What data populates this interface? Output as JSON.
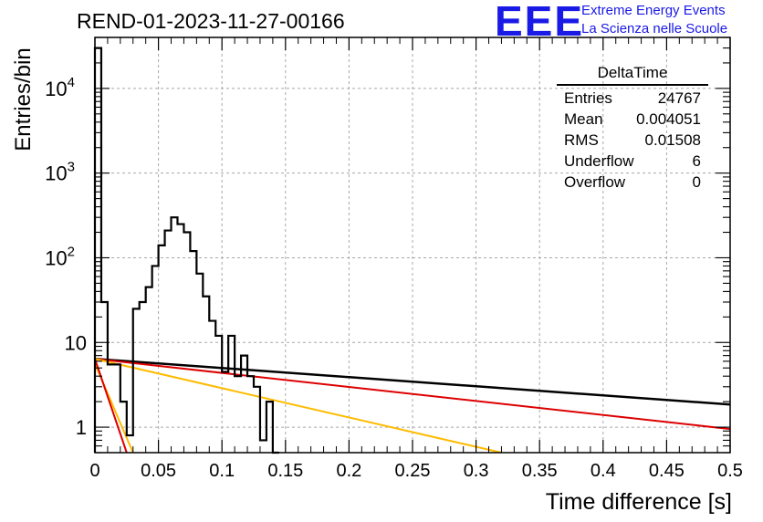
{
  "header": {
    "title": "REND-01-2023-11-27-00166",
    "logo": "EEE",
    "logo_line1": "Extreme Energy Events",
    "logo_line2": "La Scienza nelle Scuole"
  },
  "stats": {
    "name": "DeltaTime",
    "rows": [
      {
        "label": "Entries",
        "value": "24767"
      },
      {
        "label": "Mean",
        "value": "0.004051"
      },
      {
        "label": "RMS",
        "value": "0.01508"
      },
      {
        "label": "Underflow",
        "value": "6"
      },
      {
        "label": "Overflow",
        "value": "0"
      }
    ]
  },
  "chart_data": {
    "type": "line",
    "xlabel": "Time difference [s]",
    "ylabel": "Entries/bin",
    "xlim": [
      0,
      0.5
    ],
    "ylim": [
      0.5,
      40000
    ],
    "yscale": "log",
    "grid": true,
    "x_ticks": [
      {
        "value": 0,
        "label": "0"
      },
      {
        "value": 0.05,
        "label": "0.05"
      },
      {
        "value": 0.1,
        "label": "0.1"
      },
      {
        "value": 0.15,
        "label": "0.15"
      },
      {
        "value": 0.2,
        "label": "0.2"
      },
      {
        "value": 0.25,
        "label": "0.25"
      },
      {
        "value": 0.3,
        "label": "0.3"
      },
      {
        "value": 0.35,
        "label": "0.35"
      },
      {
        "value": 0.4,
        "label": "0.4"
      },
      {
        "value": 0.45,
        "label": "0.45"
      },
      {
        "value": 0.5,
        "label": "0.5"
      }
    ],
    "y_ticks": [
      {
        "value": 1,
        "label": "1",
        "sup": ""
      },
      {
        "value": 10,
        "label": "10",
        "sup": ""
      },
      {
        "value": 100,
        "label": "10",
        "sup": "2"
      },
      {
        "value": 1000,
        "label": "10",
        "sup": "3"
      },
      {
        "value": 10000,
        "label": "10",
        "sup": "4"
      }
    ],
    "histogram": {
      "color": "#000000",
      "bin_width": 0.005,
      "bins": [
        {
          "x": 0.0,
          "y": 30000
        },
        {
          "x": 0.005,
          "y": 30
        },
        {
          "x": 0.01,
          "y": 5.5
        },
        {
          "x": 0.015,
          "y": 5.5
        },
        {
          "x": 0.02,
          "y": 2.0
        },
        {
          "x": 0.025,
          "y": 0.8
        },
        {
          "x": 0.03,
          "y": 25
        },
        {
          "x": 0.035,
          "y": 30
        },
        {
          "x": 0.04,
          "y": 45
        },
        {
          "x": 0.045,
          "y": 80
        },
        {
          "x": 0.05,
          "y": 140
        },
        {
          "x": 0.055,
          "y": 210
        },
        {
          "x": 0.06,
          "y": 300
        },
        {
          "x": 0.065,
          "y": 250
        },
        {
          "x": 0.07,
          "y": 200
        },
        {
          "x": 0.075,
          "y": 120
        },
        {
          "x": 0.08,
          "y": 65
        },
        {
          "x": 0.085,
          "y": 35
        },
        {
          "x": 0.09,
          "y": 18
        },
        {
          "x": 0.095,
          "y": 12
        },
        {
          "x": 0.1,
          "y": 4.5
        },
        {
          "x": 0.105,
          "y": 12
        },
        {
          "x": 0.11,
          "y": 4
        },
        {
          "x": 0.115,
          "y": 7
        },
        {
          "x": 0.12,
          "y": 4
        },
        {
          "x": 0.125,
          "y": 3
        },
        {
          "x": 0.13,
          "y": 0.7
        },
        {
          "x": 0.135,
          "y": 2
        },
        {
          "x": 0.14,
          "y": 0.4
        }
      ]
    },
    "series": [
      {
        "color": "#000000",
        "x": [
          0,
          0.5
        ],
        "y": [
          6.4,
          1.85
        ]
      },
      {
        "color": "#dd0000",
        "x": [
          0,
          0.5
        ],
        "y": [
          6.4,
          0.95
        ]
      },
      {
        "color": "#ffbb00",
        "x": [
          0,
          0.32
        ],
        "y": [
          6.4,
          0.5
        ]
      },
      {
        "color": "#ffbb00",
        "x": [
          0,
          0.03
        ],
        "y": [
          5.6,
          0.5
        ]
      },
      {
        "color": "#dd0000",
        "x": [
          0,
          0.025
        ],
        "y": [
          6.4,
          0.5
        ]
      }
    ]
  }
}
